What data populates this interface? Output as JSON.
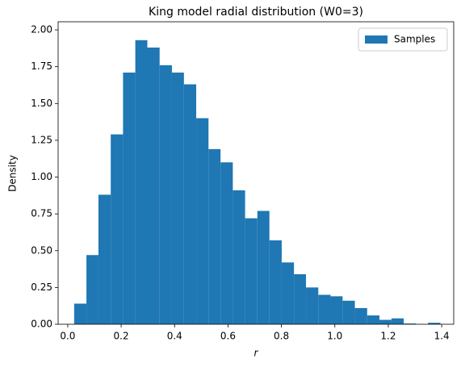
{
  "chart_data": {
    "type": "histogram",
    "title": "King model radial distribution (W0=3)",
    "x_label": "r",
    "y_label": "Density",
    "bins": [
      0.024,
      0.07,
      0.115,
      0.161,
      0.207,
      0.253,
      0.298,
      0.344,
      0.39,
      0.435,
      0.481,
      0.527,
      0.572,
      0.618,
      0.664,
      0.71,
      0.755,
      0.801,
      0.847,
      0.892,
      0.938,
      0.984,
      1.029,
      1.075,
      1.121,
      1.167,
      1.212,
      1.258,
      1.304,
      1.349,
      1.395
    ],
    "series": [
      {
        "name": "Samples",
        "color": "#1f77b4",
        "values": [
          0.14,
          0.47,
          0.88,
          1.29,
          1.71,
          1.93,
          1.88,
          1.76,
          1.71,
          1.63,
          1.4,
          1.19,
          1.1,
          0.91,
          0.72,
          0.77,
          0.57,
          0.42,
          0.34,
          0.25,
          0.2,
          0.19,
          0.16,
          0.11,
          0.06,
          0.03,
          0.04,
          0.005,
          0,
          0.01
        ]
      }
    ],
    "xlim": [
      -0.036,
      1.445
    ],
    "ylim": [
      0,
      2.055
    ],
    "xticks": [
      {
        "value": 0,
        "label": "0.0"
      },
      {
        "value": 0.2,
        "label": "0.2"
      },
      {
        "value": 0.4,
        "label": "0.4"
      },
      {
        "value": 0.6,
        "label": "0.6"
      },
      {
        "value": 0.8,
        "label": "0.8"
      },
      {
        "value": 1,
        "label": "1.0"
      },
      {
        "value": 1.2,
        "label": "1.2"
      },
      {
        "value": 1.4,
        "label": "1.4"
      }
    ],
    "yticks": [
      {
        "value": 0,
        "label": "0.00"
      },
      {
        "value": 0.25,
        "label": "0.25"
      },
      {
        "value": 0.5,
        "label": "0.50"
      },
      {
        "value": 0.75,
        "label": "0.75"
      },
      {
        "value": 1,
        "label": "1.00"
      },
      {
        "value": 1.25,
        "label": "1.25"
      },
      {
        "value": 1.5,
        "label": "1.50"
      },
      {
        "value": 1.75,
        "label": "1.75"
      },
      {
        "value": 2,
        "label": "2.00"
      }
    ],
    "legend": "upper right"
  }
}
